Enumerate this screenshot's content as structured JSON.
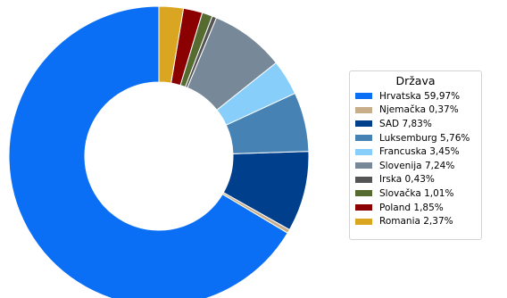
{
  "chart_data": {
    "type": "pie",
    "donut": true,
    "legend_title": "Država",
    "legend_position": "right",
    "slices": [
      {
        "label": "Hrvatska 59,97%",
        "name": "Hrvatska",
        "value": 59.97,
        "color": "#0a6ff5"
      },
      {
        "label": "Njemačka 0,37%",
        "name": "Njemačka",
        "value": 0.37,
        "color": "#c8ad8b"
      },
      {
        "label": "SAD 7,83%",
        "name": "SAD",
        "value": 7.83,
        "color": "#003f8c"
      },
      {
        "label": "Luksemburg 5,76%",
        "name": "Luksemburg",
        "value": 5.76,
        "color": "#4682b4"
      },
      {
        "label": "Francuska 3,45%",
        "name": "Francuska",
        "value": 3.45,
        "color": "#87cefa"
      },
      {
        "label": "Slovenija 7,24%",
        "name": "Slovenija",
        "value": 7.24,
        "color": "#778899"
      },
      {
        "label": "Irska 0,43%",
        "name": "Irska",
        "value": 0.43,
        "color": "#555555"
      },
      {
        "label": "Slovačka 1,01%",
        "name": "Slovačka",
        "value": 1.01,
        "color": "#556b2f"
      },
      {
        "label": "Poland 1,85%",
        "name": "Poland",
        "value": 1.85,
        "color": "#8b0000"
      },
      {
        "label": "Romania 2,37%",
        "name": "Romania",
        "value": 2.37,
        "color": "#daa520"
      }
    ]
  }
}
